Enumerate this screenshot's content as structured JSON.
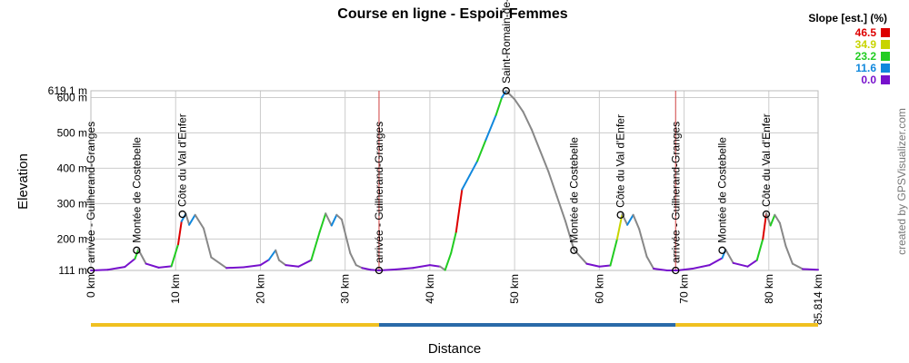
{
  "title": "Course en ligne - Espoir Femmes",
  "credit": "created by GPSVisualizer.com",
  "slope_legend": {
    "title": "Slope [est.] (%)",
    "entries": [
      {
        "label": "46.5",
        "color": "#dd0000"
      },
      {
        "label": "34.9",
        "color": "#c8d400"
      },
      {
        "label": "23.2",
        "color": "#22cc22"
      },
      {
        "label": "11.6",
        "color": "#1188dd"
      },
      {
        "label": "0.0",
        "color": "#7711cc"
      }
    ]
  },
  "chart_data": {
    "type": "area",
    "title": "Course en ligne - Espoir Femmes",
    "xlabel": "Distance",
    "ylabel": "Elevation",
    "xlim": [
      0,
      85.814
    ],
    "ylim": [
      111,
      619.1
    ],
    "x_ticks": [
      {
        "value": 0,
        "label": "0 km"
      },
      {
        "value": 10,
        "label": "10 km"
      },
      {
        "value": 20,
        "label": "20 km"
      },
      {
        "value": 30,
        "label": "30 km"
      },
      {
        "value": 40,
        "label": "40 km"
      },
      {
        "value": 50,
        "label": "50 km"
      },
      {
        "value": 60,
        "label": "60 km"
      },
      {
        "value": 70,
        "label": "70 km"
      },
      {
        "value": 80,
        "label": "80 km"
      },
      {
        "value": 85.814,
        "label": "85.814 km"
      }
    ],
    "y_ticks": [
      {
        "value": 111,
        "label": "111 m"
      },
      {
        "value": 200,
        "label": "200 m"
      },
      {
        "value": 300,
        "label": "300 m"
      },
      {
        "value": 400,
        "label": "400 m"
      },
      {
        "value": 500,
        "label": "500 m"
      },
      {
        "value": 600,
        "label": "600 m"
      },
      {
        "value": 619.1,
        "label": "619.1 m"
      }
    ],
    "grid": true,
    "profile": {
      "x": [
        0,
        2,
        4,
        5.2,
        5.6,
        6.5,
        8,
        9.5,
        10.3,
        10.7,
        11.2,
        11.6,
        12.3,
        13.3,
        14.2,
        16,
        18,
        20,
        21,
        21.8,
        22.2,
        23,
        24.5,
        26,
        27,
        27.7,
        28.4,
        29,
        29.6,
        30.6,
        31.3,
        32,
        33,
        34,
        36,
        38,
        40,
        41.2,
        41.8,
        42.5,
        43.1,
        43.8,
        44.7,
        45.6,
        46.6,
        47.8,
        48.5,
        49,
        50,
        51,
        52,
        53,
        54,
        55,
        56,
        57,
        58.5,
        60,
        61.3,
        62.1,
        62.7,
        63.3,
        64,
        64.7,
        65.6,
        66.4,
        68,
        69.2,
        71,
        73,
        74.5,
        74.9,
        75.8,
        77.5,
        78.6,
        79.3,
        79.7,
        80.2,
        80.7,
        81.3,
        82,
        82.8,
        84,
        85.814
      ],
      "elevation": [
        111,
        113,
        121,
        144,
        170,
        130,
        119,
        123,
        185,
        250,
        271,
        240,
        268,
        230,
        148,
        118,
        120,
        126,
        141,
        168,
        140,
        126,
        122,
        140,
        220,
        272,
        238,
        268,
        255,
        160,
        126,
        118,
        113,
        111,
        114,
        118,
        126,
        122,
        112,
        160,
        220,
        340,
        380,
        420,
        480,
        550,
        600,
        619,
        595,
        560,
        510,
        450,
        390,
        320,
        250,
        170,
        130,
        122,
        125,
        200,
        270,
        240,
        268,
        228,
        150,
        116,
        111,
        111,
        116,
        126,
        146,
        170,
        132,
        122,
        140,
        200,
        272,
        238,
        268,
        245,
        180,
        130,
        115,
        113
      ]
    },
    "band_colors": [
      "#f0c020",
      "#2a6aa8",
      "#f0c020"
    ],
    "band_breaks": [
      0,
      34,
      69,
      85.814
    ],
    "lap_markers": [
      34,
      69
    ],
    "waypoints": [
      {
        "x": 0,
        "elevation": 111,
        "label": "arrivée - Guilherand-Granges"
      },
      {
        "x": 5.4,
        "elevation": 168,
        "label": "Montée de Costebelle"
      },
      {
        "x": 10.8,
        "elevation": 270,
        "label": "Côte du Val d'Enfer"
      },
      {
        "x": 34,
        "elevation": 111,
        "label": "arrivée - Guilherand-Granges"
      },
      {
        "x": 49,
        "elevation": 619,
        "label": "Saint-Romain-de-Lerps"
      },
      {
        "x": 57,
        "elevation": 168,
        "label": "Montée de Costebelle"
      },
      {
        "x": 62.5,
        "elevation": 268,
        "label": "Côte du Val d'Enfer"
      },
      {
        "x": 69,
        "elevation": 111,
        "label": "arrivée - Guilherand-Granges"
      },
      {
        "x": 74.5,
        "elevation": 168,
        "label": "Montée de Costebelle"
      },
      {
        "x": 79.7,
        "elevation": 270,
        "label": "Côte du Val d'Enfer"
      }
    ]
  }
}
